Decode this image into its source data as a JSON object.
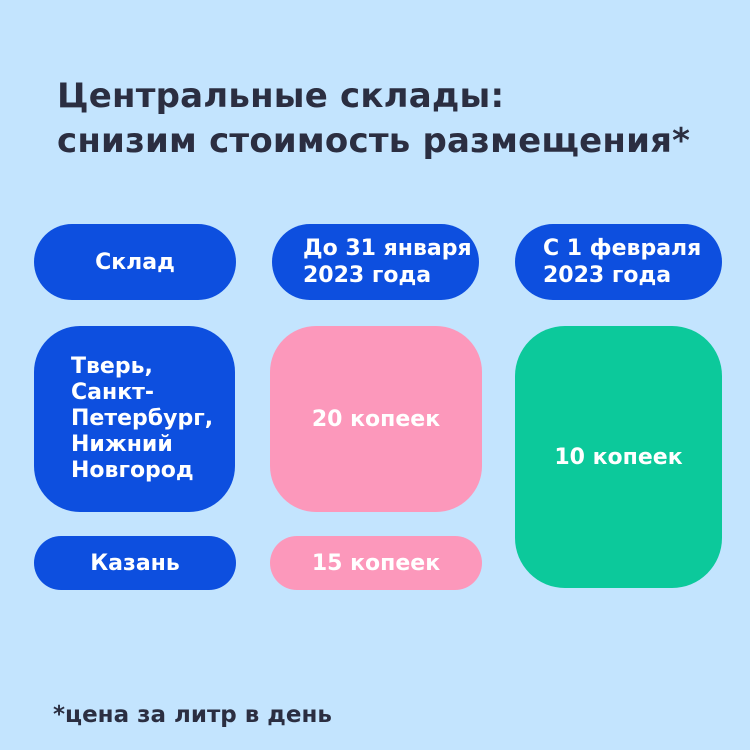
{
  "title": {
    "line1": "Центральные склады:",
    "line2": "снизим стоимость размещения*"
  },
  "footnote": "*цена за литр в день",
  "colors": {
    "background": "#c3e4fe",
    "blue": "#0d4fdf",
    "pink": "#fc98bb",
    "green": "#0cc99b",
    "navy": "#2b2e41",
    "cell_text": "#ffffff"
  },
  "table": {
    "header_warehouse": "Склад",
    "header_before": {
      "line1": "До 31 января",
      "line2": "2023 года"
    },
    "header_after": {
      "line1": "С 1 февраля",
      "line2": "2023 года"
    },
    "cities_main": {
      "lines": [
        "Тверь,",
        "Санкт-",
        "Петербург,",
        "Нижний",
        "Новгород"
      ]
    },
    "price_main_before": "20 копеек",
    "price_after": "10 копеек",
    "city_kazan": "Казань",
    "price_kazan_before": "15 копеек"
  },
  "chart_data": {
    "type": "table",
    "title": "Центральные склады: снизим стоимость размещения*",
    "columns": [
      "Склад",
      "До 31 января 2023 года",
      "С 1 февраля 2023 года"
    ],
    "rows": [
      [
        "Тверь, Санкт-Петербург, Нижний Новгород",
        "20 копеек",
        "10 копеек"
      ],
      [
        "Казань",
        "15 копеек",
        "10 копеек"
      ]
    ],
    "merged_cells": [
      {
        "column": "С 1 февраля 2023 года",
        "value": "10 копеек",
        "spans_rows": [
          0,
          1
        ]
      }
    ],
    "footnote": "*цена за литр в день",
    "layout_hints": {
      "background": "#c3e4fe",
      "header_cell_color": "#0d4fdf",
      "warehouse_cell_color": "#0d4fdf",
      "before_price_color": "#fc98bb",
      "after_price_color": "#0cc99b",
      "text_color_cells": "#ffffff",
      "text_color_title": "#2b2e41"
    }
  }
}
